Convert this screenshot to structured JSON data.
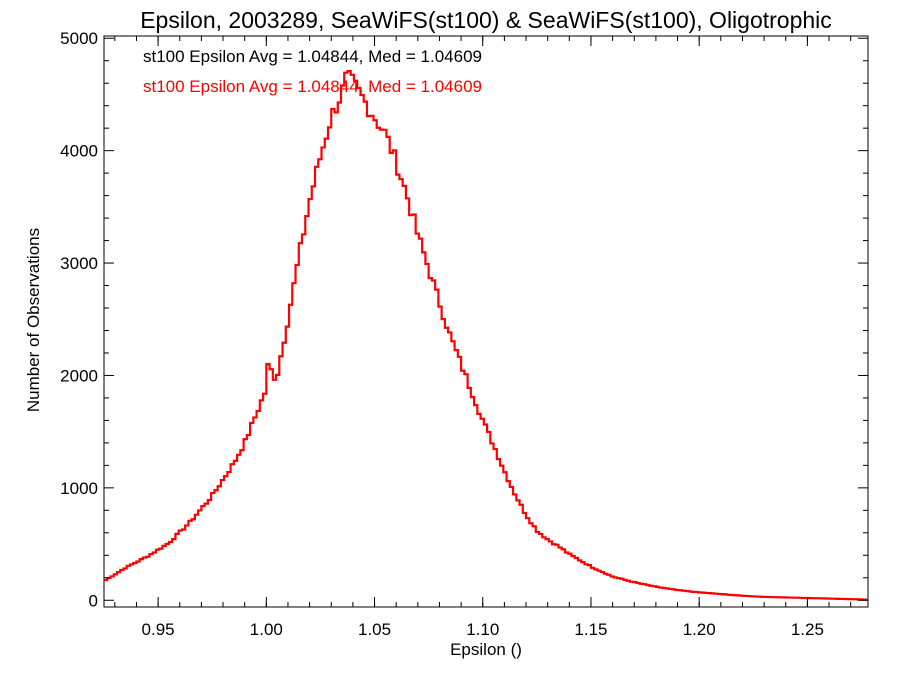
{
  "chart_data": {
    "type": "histogram-step",
    "title": "Epsilon, 2003289, SeaWiFS(st100) & SeaWiFS(st100), Oligotrophic",
    "xlabel": "Epsilon ()",
    "ylabel": "Number of Observations",
    "xlim": [
      0.925,
      1.278
    ],
    "ylim": [
      -60,
      5020
    ],
    "x_ticks": [
      0.95,
      1.0,
      1.05,
      1.1,
      1.15,
      1.2,
      1.25
    ],
    "x_tick_labels": [
      "0.95",
      "1.00",
      "1.05",
      "1.10",
      "1.15",
      "1.20",
      "1.25"
    ],
    "y_ticks": [
      0,
      1000,
      2000,
      3000,
      4000,
      5000
    ],
    "y_tick_labels": [
      "0",
      "1000",
      "2000",
      "3000",
      "4000",
      "5000"
    ],
    "grid": false,
    "annotations": [
      {
        "text": "st100 Epsilon Avg = 1.04844, Med = 1.04609",
        "color": "#000000"
      },
      {
        "text": "st100 Epsilon Avg = 1.04844, Med = 1.04609",
        "color": "#ff0000"
      }
    ],
    "series": [
      {
        "color": "#ff0000",
        "x": [
          0.925,
          0.935,
          0.945,
          0.955,
          0.965,
          0.975,
          0.985,
          0.99,
          0.995,
          1.0,
          1.001,
          1.003,
          1.005,
          1.01,
          1.015,
          1.02,
          1.025,
          1.03,
          1.035,
          1.037,
          1.04,
          1.045,
          1.05,
          1.055,
          1.06,
          1.065,
          1.07,
          1.075,
          1.08,
          1.085,
          1.09,
          1.095,
          1.1,
          1.105,
          1.11,
          1.115,
          1.12,
          1.125,
          1.13,
          1.135,
          1.14,
          1.15,
          1.16,
          1.17,
          1.18,
          1.19,
          1.2,
          1.21,
          1.22,
          1.23,
          1.24,
          1.25,
          1.26,
          1.27,
          1.278
        ],
        "y": [
          170,
          290,
          390,
          510,
          700,
          930,
          1220,
          1400,
          1640,
          1880,
          2150,
          1980,
          2000,
          2500,
          3050,
          3550,
          3950,
          4300,
          4520,
          4650,
          4600,
          4450,
          4300,
          4150,
          3900,
          3600,
          3250,
          2950,
          2650,
          2350,
          2100,
          1850,
          1600,
          1380,
          1150,
          940,
          760,
          620,
          540,
          480,
          410,
          300,
          210,
          160,
          120,
          90,
          70,
          55,
          40,
          30,
          25,
          20,
          15,
          10,
          5
        ]
      }
    ]
  }
}
